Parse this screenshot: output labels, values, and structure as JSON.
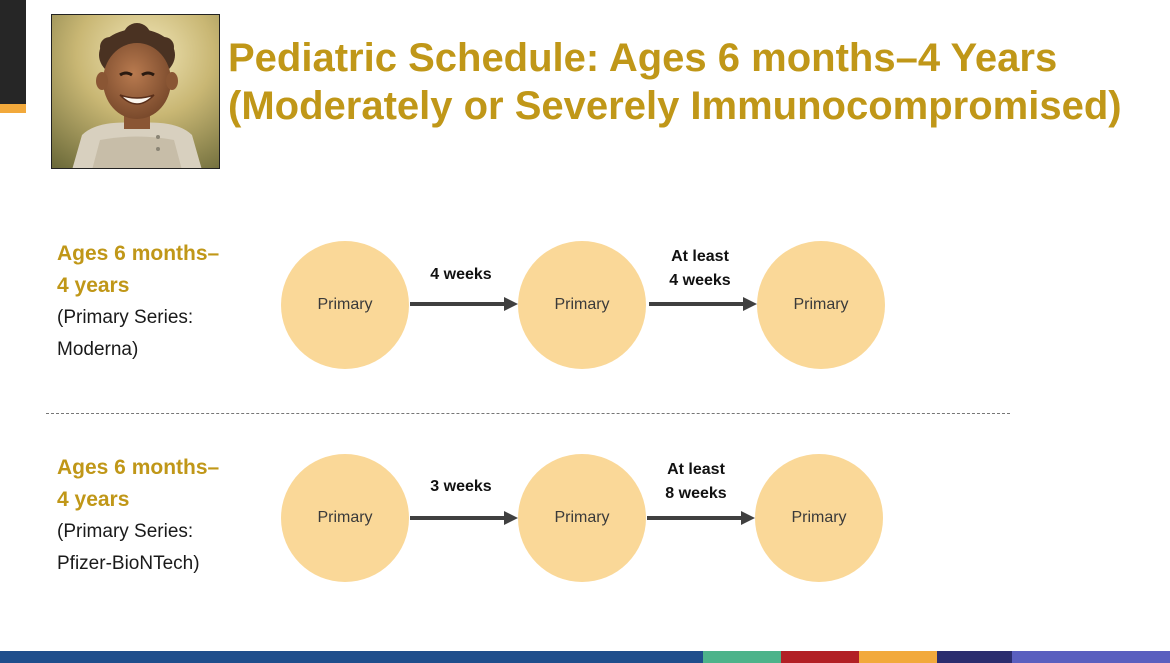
{
  "title": {
    "line1": "Pediatric Schedule: Ages 6 months–4 Years",
    "line2": "(Moderately or Severely Immunocompromised)"
  },
  "rows": [
    {
      "age_line1": "Ages 6 months–",
      "age_line2": "4 years",
      "series_line1": "(Primary Series:",
      "series_line2": "Moderna)",
      "doses": [
        "Primary",
        "Primary",
        "Primary"
      ],
      "intervals": [
        {
          "line1": "4 weeks",
          "line2": ""
        },
        {
          "line1": "At least",
          "line2": "4 weeks"
        }
      ]
    },
    {
      "age_line1": "Ages 6 months–",
      "age_line2": "4 years",
      "series_line1": "(Primary Series:",
      "series_line2": "Pfizer-BioNTech)",
      "doses": [
        "Primary",
        "Primary",
        "Primary"
      ],
      "intervals": [
        {
          "line1": "3 weeks",
          "line2": ""
        },
        {
          "line1": "At least",
          "line2": "8 weeks"
        }
      ]
    }
  ],
  "colors": {
    "title": "#c09718",
    "circle_fill": "#fad898",
    "arrow": "#404040",
    "footer": [
      "#1f4e8c",
      "#4db38a",
      "#b22025",
      "#f2a93b",
      "#2b2d6e",
      "#5a5fbf"
    ]
  }
}
